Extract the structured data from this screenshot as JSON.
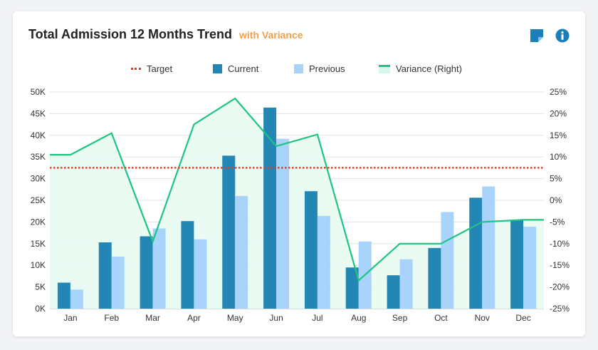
{
  "header": {
    "title": "Total Admission 12 Months Trend",
    "subtitle": "with Variance",
    "subtitle_color": "#f0a04b",
    "icons": [
      "note-icon",
      "info-icon"
    ]
  },
  "colors": {
    "current": "#2386b5",
    "previous": "#a8d4fb",
    "variance_line": "#1ec482",
    "variance_fill": "#e8fbf3",
    "target": "#d9432a",
    "icon": "#1a7fb8"
  },
  "chart_data": {
    "type": "bar",
    "categories": [
      "Jan",
      "Feb",
      "Mar",
      "Apr",
      "May",
      "Jun",
      "Jul",
      "Aug",
      "Sep",
      "Oct",
      "Nov",
      "Dec"
    ],
    "series": [
      {
        "name": "Current",
        "type": "bar",
        "axis": "left",
        "values": [
          6000,
          15300,
          16700,
          20200,
          35300,
          46400,
          27100,
          9500,
          7700,
          14000,
          25600,
          20400
        ]
      },
      {
        "name": "Previous",
        "type": "bar",
        "axis": "left",
        "values": [
          4400,
          12000,
          18500,
          16000,
          26000,
          39200,
          21400,
          15500,
          11400,
          22300,
          28200,
          18900
        ]
      },
      {
        "name": "Variance (Right)",
        "type": "area",
        "axis": "right",
        "values": [
          10.5,
          15.5,
          -9.5,
          17.5,
          23.5,
          12.5,
          15.2,
          -18.5,
          -10,
          -10,
          -5,
          -4.5
        ]
      }
    ],
    "target": {
      "name": "Target",
      "value": 32500,
      "axis": "left"
    },
    "y_left": {
      "min": 0,
      "max": 50000,
      "step": 5000,
      "tick_labels": [
        "0K",
        "5K",
        "10K",
        "15K",
        "20K",
        "25K",
        "30K",
        "35K",
        "40K",
        "45K",
        "50K"
      ]
    },
    "y_right": {
      "min": -25,
      "max": 25,
      "step": 5,
      "tick_labels": [
        "-25%",
        "-20%",
        "-15%",
        "-10%",
        "-5%",
        "0%",
        "5%",
        "10%",
        "15%",
        "20%",
        "25%"
      ]
    },
    "legend": {
      "position": "top",
      "items": [
        {
          "label": "Target",
          "kind": "dotted-line"
        },
        {
          "label": "Current",
          "kind": "box"
        },
        {
          "label": "Previous",
          "kind": "box"
        },
        {
          "label": "Variance (Right)",
          "kind": "area"
        }
      ]
    },
    "grid": true
  }
}
